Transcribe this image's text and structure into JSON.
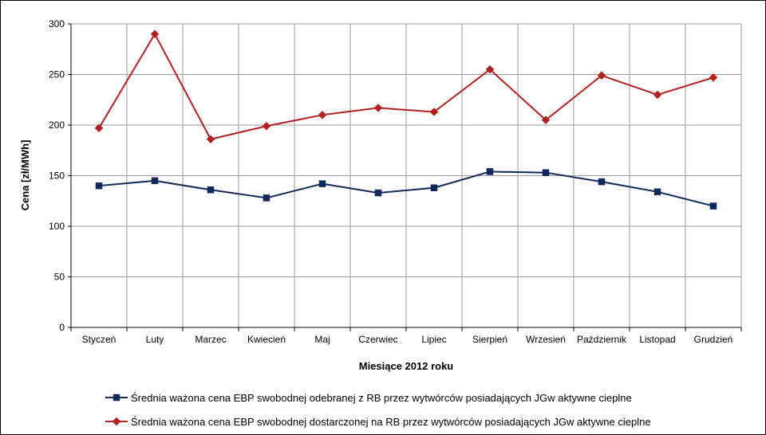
{
  "chart_data": {
    "type": "line",
    "xlabel": "Miesiące 2012 roku",
    "ylabel": "Cena [zł/MWh]",
    "ylim": [
      0,
      300
    ],
    "yticks": [
      "0",
      "50",
      "100",
      "150",
      "200",
      "250",
      "300"
    ],
    "categories": [
      "Styczeń",
      "Luty",
      "Marzec",
      "Kwiecień",
      "Maj",
      "Czerwiec",
      "Lipiec",
      "Sierpień",
      "Wrzesień",
      "Październik",
      "Listopad",
      "Grudzień"
    ],
    "grid": true,
    "legend_position": "bottom",
    "series": [
      {
        "name": "Średnia ważona cena EBP swobodnej odebranej z RB przez wytwórców posiadających JGw aktywne cieplne",
        "color": "#10285c",
        "marker": "square",
        "values": [
          140,
          145,
          136,
          128,
          142,
          133,
          138,
          154,
          153,
          144,
          134,
          120
        ]
      },
      {
        "name": "Średnia ważona cena EBP swobodnej dostarczonej na RB przez wytwórców posiadających JGw aktywne cieplne",
        "color": "#b3201f",
        "marker": "diamond",
        "values": [
          197,
          290,
          186,
          199,
          210,
          217,
          213,
          255,
          205,
          249,
          230,
          247
        ]
      }
    ]
  }
}
